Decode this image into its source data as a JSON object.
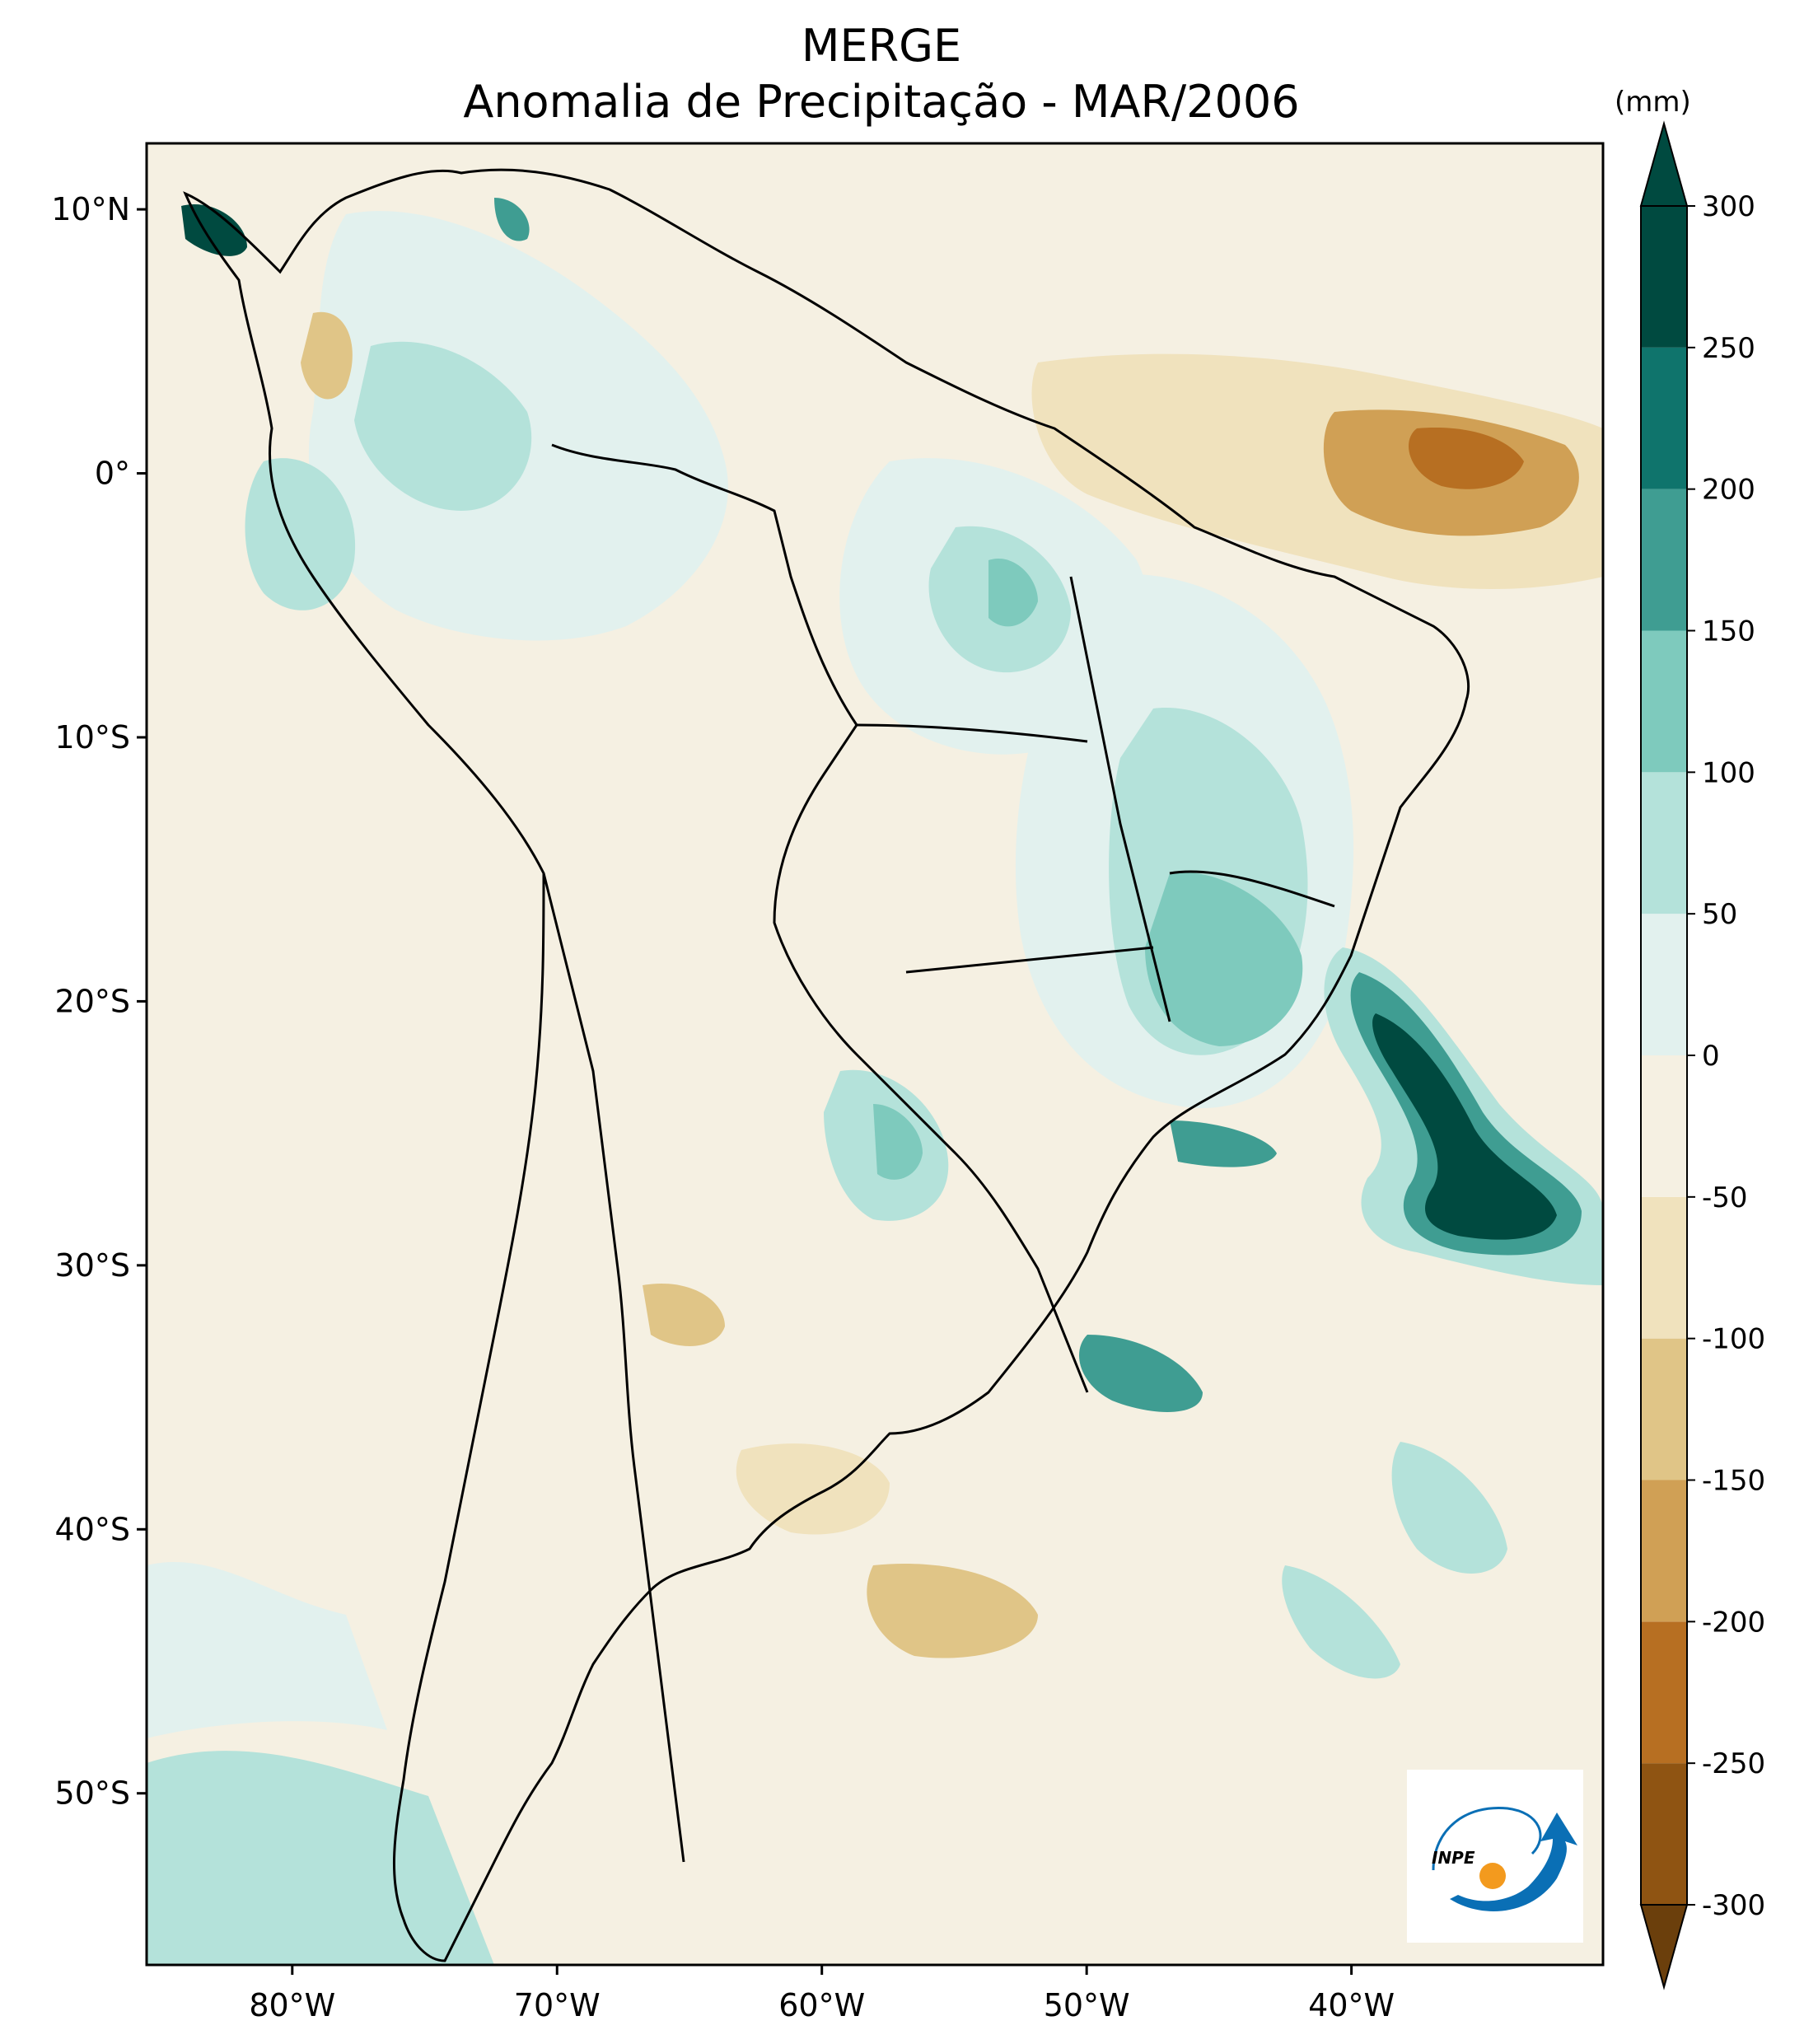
{
  "title": "MERGE",
  "subtitle": "Anomalia de Precipitação - MAR/2006",
  "colorbar": {
    "unit": "(mm)",
    "levels": [
      -300,
      -250,
      -200,
      -150,
      -100,
      -50,
      0,
      50,
      100,
      150,
      200,
      250,
      300
    ],
    "colors": [
      "#6b3f0c",
      "#8f5412",
      "#b76f22",
      "#d0a055",
      "#e0c587",
      "#f0e2bd",
      "#f5f0e2",
      "#e2f1ee",
      "#b4e2da",
      "#7ecabd",
      "#3f9d92",
      "#0f746c",
      "#004a40"
    ]
  },
  "axes": {
    "lon_ticks": [
      "80°W",
      "70°W",
      "60°W",
      "50°W",
      "40°W"
    ],
    "lat_ticks": [
      "10°N",
      "0°",
      "10°S",
      "20°S",
      "30°S",
      "40°S",
      "50°S"
    ]
  },
  "logo": {
    "text": "INPE",
    "ring_color": "#0a6fb5",
    "dot_color": "#f39a1e"
  },
  "features": {
    "strong_positive_anomaly": "off southeast Brazil coast",
    "strong_negative_anomaly": "equatorial Atlantic off northern Brazil"
  }
}
